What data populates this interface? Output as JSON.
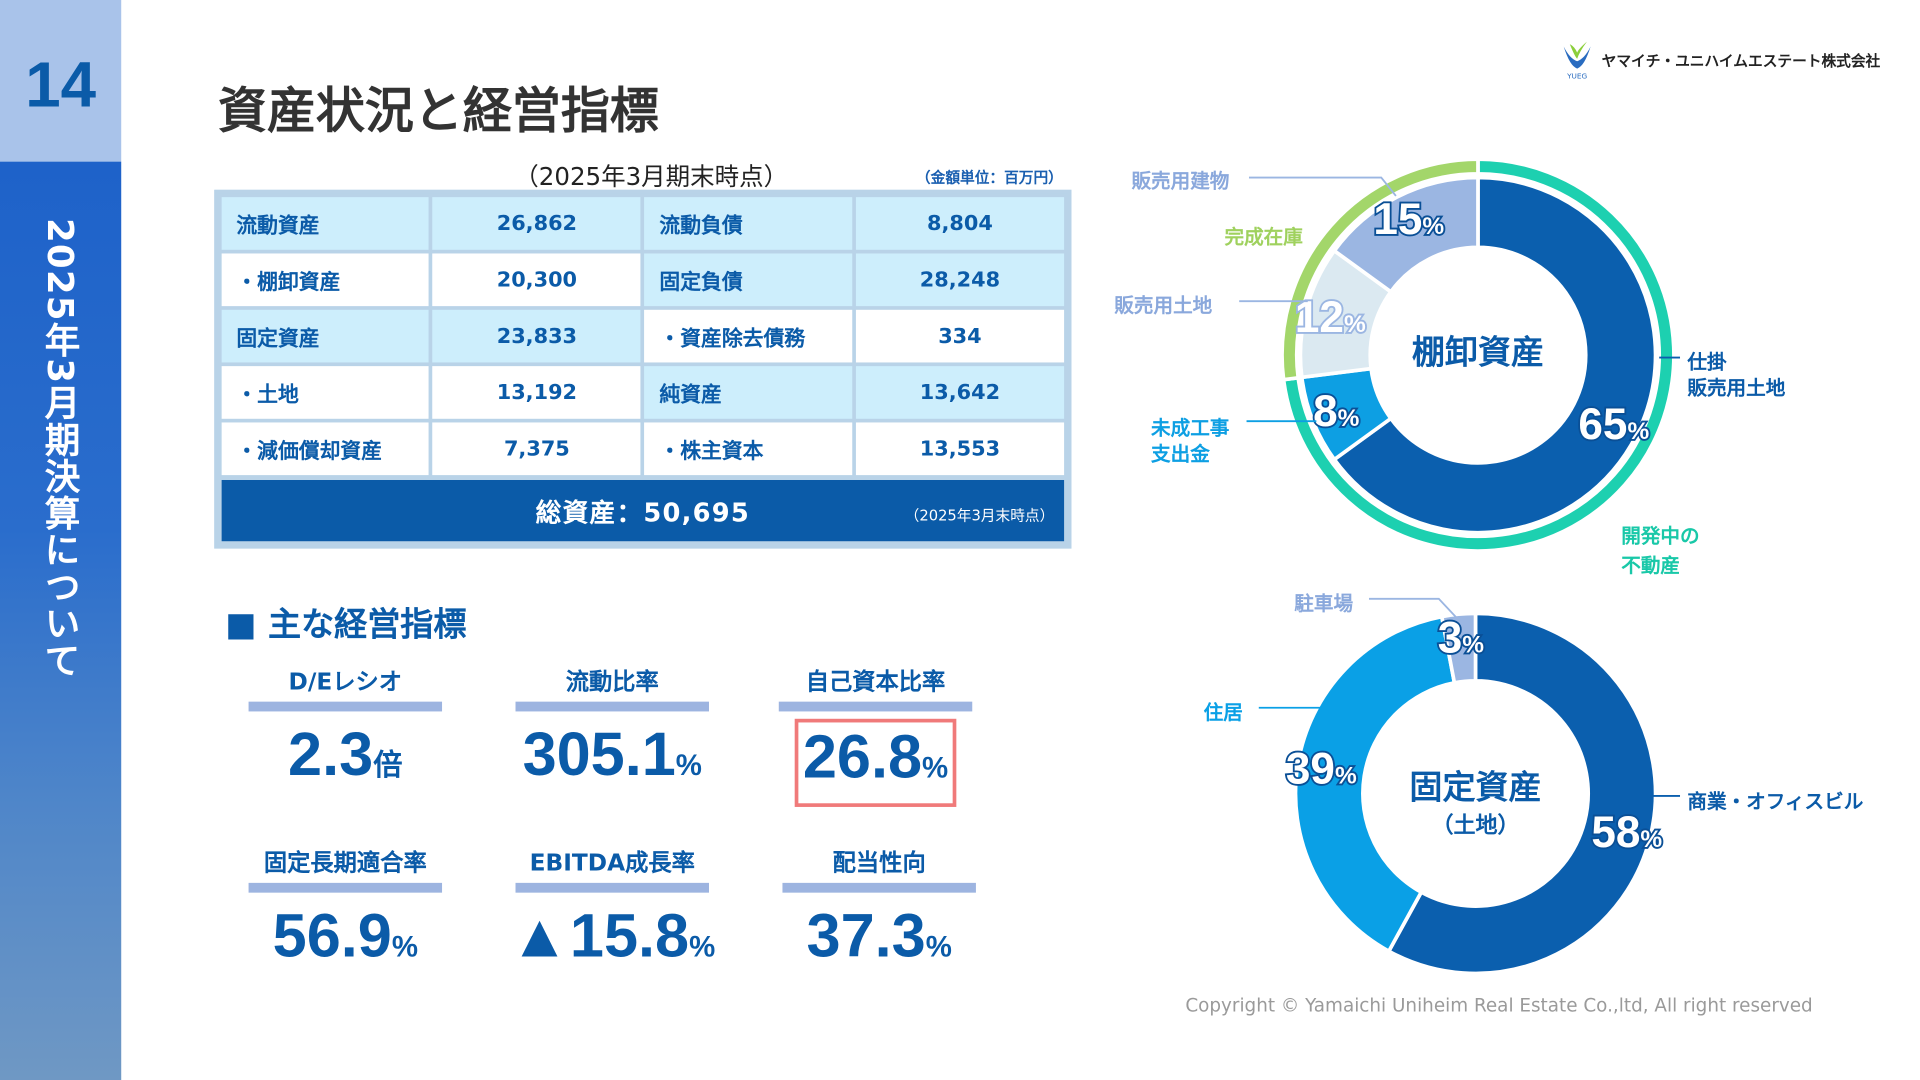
{
  "sidebar": {
    "page_number": "14",
    "section_title": "2025年3月期決算について"
  },
  "header": {
    "title": "資産状況と経営指標",
    "company": "ヤマイチ・ユニハイムエステート株式会社",
    "logo_text": "YUEG"
  },
  "balance_table": {
    "caption": "（2025年3月期末時点）",
    "unit": "（金額単位：百万円）",
    "rows": [
      [
        "流動資産",
        "26,862",
        "流動負債",
        "8,804"
      ],
      [
        "・棚卸資産",
        "20,300",
        "固定負債",
        "28,248"
      ],
      [
        "固定資産",
        "23,833",
        "・資産除去債務",
        "334"
      ],
      [
        "・土地",
        "13,192",
        "純資産",
        "13,642"
      ],
      [
        "・減価償却資産",
        "7,375",
        "・株主資本",
        "13,553"
      ]
    ],
    "total_label": "総資産：50,695",
    "total_note": "（2025年3月末時点）"
  },
  "kpis": {
    "heading": "■ 主な経営指標",
    "items": [
      {
        "label": "D/Eレシオ",
        "value": "2.3",
        "unit": "倍"
      },
      {
        "label": "流動比率",
        "value": "305.1",
        "unit": "%"
      },
      {
        "label": "自己資本比率",
        "value": "26.8",
        "unit": "%",
        "highlight": true
      },
      {
        "label": "固定長期適合率",
        "value": "56.9",
        "unit": "%"
      },
      {
        "label": "EBITDA成長率",
        "value": "▲15.8",
        "unit": "%"
      },
      {
        "label": "配当性向",
        "value": "37.3",
        "unit": "%"
      }
    ]
  },
  "chart_data": [
    {
      "type": "pie",
      "title": "棚卸資産",
      "categories": [
        "仕掛販売用土地",
        "未成工事支出金",
        "販売用土地",
        "販売用建物"
      ],
      "values": [
        65,
        8,
        12,
        15
      ],
      "colors": [
        "#0b5fae",
        "#0d9fe3",
        "#dbe9f1",
        "#9bb6e2"
      ],
      "outer_ring": [
        {
          "name": "開発中の不動産",
          "value": 73,
          "color": "#1dd0b0"
        },
        {
          "name": "完成在庫",
          "value": 27,
          "color": "#a3d66a"
        }
      ],
      "labels": {
        "c0": "仕掛",
        "c0b": "販売用土地",
        "c1": "未成工事",
        "c1b": "支出金",
        "c2": "販売用土地",
        "c3": "販売用建物",
        "r0": "開発中の",
        "r0b": "不動産",
        "r1": "完成在庫"
      }
    },
    {
      "type": "pie",
      "title": "固定資産",
      "subtitle": "（土地）",
      "categories": [
        "商業・オフィスビル",
        "住居",
        "駐車場"
      ],
      "values": [
        58,
        39,
        3
      ],
      "colors": [
        "#0b5fae",
        "#0aa0e6",
        "#9bb6e2"
      ]
    }
  ],
  "footer": {
    "copyright": "Copyright © Yamaichi Uniheim Real Estate Co.,ltd, All right reserved"
  }
}
